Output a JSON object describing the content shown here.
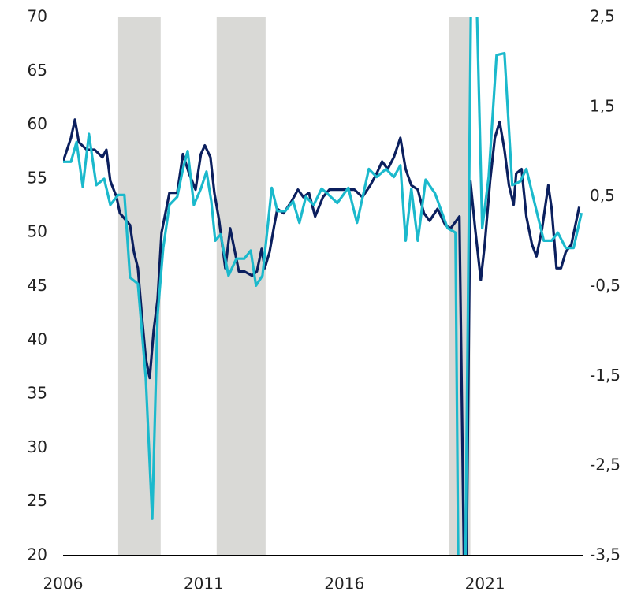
{
  "chart_data": {
    "type": "line",
    "xlim": [
      2006,
      2024.5
    ],
    "xticks": [
      2006,
      2011,
      2016,
      2021
    ],
    "ylim": [
      20,
      70
    ],
    "yticks": [
      20,
      25,
      30,
      35,
      40,
      45,
      50,
      55,
      60,
      65,
      70
    ],
    "y2lim": [
      -3.5,
      2.5
    ],
    "y2ticks": [
      {
        "value": 2.5,
        "label": "2,5"
      },
      {
        "value": 1.5,
        "label": "1,5"
      },
      {
        "value": 0.5,
        "label": "0,5"
      },
      {
        "value": -0.5,
        "label": "-0,5"
      },
      {
        "value": -1.5,
        "label": "-1,5"
      },
      {
        "value": -2.5,
        "label": "-2,5"
      },
      {
        "value": -3.5,
        "label": "-3,5"
      }
    ],
    "shaded_periods": [
      [
        2007.96,
        2009.47
      ],
      [
        2011.46,
        2013.2
      ],
      [
        2019.72,
        2020.48
      ]
    ],
    "shade_color": "#d9d9d6",
    "series": [
      {
        "color": "#0b1f5e",
        "x": [
          2006,
          2006.28,
          2006.42,
          2006.56,
          2006.84,
          2007.12,
          2007.4,
          2007.54,
          2007.68,
          2007.9,
          2008.02,
          2008.38,
          2008.52,
          2008.66,
          2008.8,
          2008.94,
          2009.08,
          2009.22,
          2009.36,
          2009.5,
          2009.78,
          2010.06,
          2010.26,
          2010.48,
          2010.71,
          2010.9,
          2011.04,
          2011.24,
          2011.38,
          2011.55,
          2011.77,
          2011.94,
          2012.11,
          2012.25,
          2012.44,
          2012.72,
          2012.89,
          2013.06,
          2013.17,
          2013.34,
          2013.51,
          2013.62,
          2013.84,
          2014.12,
          2014.35,
          2014.54,
          2014.74,
          2014.96,
          2015.24,
          2015.47,
          2015.75,
          2016.03,
          2016.36,
          2016.64,
          2016.92,
          2017.15,
          2017.34,
          2017.54,
          2017.76,
          2017.99,
          2018.18,
          2018.38,
          2018.61,
          2018.83,
          2019.03,
          2019.31,
          2019.59,
          2019.78,
          2020.09,
          2020.26,
          2020.34,
          2020.48,
          2020.65,
          2020.85,
          2020.99,
          2021.18,
          2021.35,
          2021.52,
          2021.69,
          2021.85,
          2022.02,
          2022.11,
          2022.3,
          2022.47,
          2022.67,
          2022.83,
          2023.03,
          2023.25,
          2023.37,
          2023.54,
          2023.7,
          2023.87,
          2024.07,
          2024.35
        ],
        "values": [
          56.6,
          58.8,
          60.5,
          58.4,
          57.7,
          57.7,
          57.0,
          57.7,
          54.8,
          53.3,
          51.8,
          50.7,
          48.2,
          46.7,
          42.3,
          38.3,
          36.5,
          40.9,
          43.8,
          50.0,
          53.7,
          53.7,
          57.3,
          55.5,
          54.0,
          57.3,
          58.1,
          57.0,
          53.7,
          51.1,
          46.7,
          50.4,
          48.2,
          46.4,
          46.4,
          46.0,
          46.4,
          48.5,
          46.7,
          48.2,
          50.7,
          52.2,
          51.8,
          52.9,
          54.0,
          53.3,
          53.7,
          51.5,
          53.3,
          54.0,
          54.0,
          54.0,
          54.0,
          53.3,
          54.4,
          55.5,
          56.6,
          55.9,
          57.0,
          58.8,
          55.9,
          54.4,
          54.0,
          51.8,
          51.1,
          52.2,
          50.7,
          50.4,
          51.5,
          18,
          18,
          54.8,
          50.4,
          45.6,
          48.9,
          54.8,
          58.8,
          60.3,
          57.7,
          54.4,
          52.6,
          55.5,
          55.9,
          51.5,
          48.9,
          47.8,
          50.4,
          54.4,
          52.2,
          46.7,
          46.7,
          48.2,
          48.9,
          52.4
        ]
      },
      {
        "color": "#1bb9cc",
        "axis": "y2",
        "x": [
          2006,
          2006.28,
          2006.48,
          2006.7,
          2006.92,
          2007.18,
          2007.46,
          2007.68,
          2007.96,
          2008.18,
          2008.38,
          2008.66,
          2008.94,
          2009.17,
          2009.36,
          2009.56,
          2009.78,
          2010.06,
          2010.26,
          2010.43,
          2010.65,
          2010.9,
          2011.1,
          2011.27,
          2011.41,
          2011.6,
          2011.88,
          2012.16,
          2012.44,
          2012.67,
          2012.86,
          2013.09,
          2013.42,
          2013.62,
          2013.9,
          2014.18,
          2014.4,
          2014.63,
          2014.91,
          2015.19,
          2015.38,
          2015.75,
          2016.14,
          2016.45,
          2016.87,
          2017.15,
          2017.48,
          2017.76,
          2017.99,
          2018.18,
          2018.38,
          2018.61,
          2018.89,
          2019.22,
          2019.67,
          2019.95,
          2020.06,
          2020.29,
          2020.51,
          2020.68,
          2020.9,
          2021.13,
          2021.41,
          2021.69,
          2021.97,
          2022.25,
          2022.47,
          2022.81,
          2023.09,
          2023.37,
          2023.59,
          2023.87,
          2024.15,
          2024.43
        ],
        "values": [
          0.89,
          0.89,
          1.11,
          0.61,
          1.2,
          0.63,
          0.7,
          0.41,
          0.52,
          0.52,
          -0.4,
          -0.47,
          -1.52,
          -3.09,
          -0.82,
          -0.07,
          0.41,
          0.5,
          0.81,
          1.01,
          0.41,
          0.59,
          0.78,
          0.45,
          0.01,
          0.08,
          -0.38,
          -0.19,
          -0.19,
          -0.1,
          -0.49,
          -0.38,
          0.6,
          0.34,
          0.34,
          0.45,
          0.21,
          0.5,
          0.41,
          0.59,
          0.54,
          0.43,
          0.6,
          0.21,
          0.81,
          0.72,
          0.81,
          0.72,
          0.85,
          0.01,
          0.59,
          0.01,
          0.69,
          0.54,
          0.15,
          0.1,
          -4,
          -4,
          3,
          3,
          0.15,
          0.72,
          2.08,
          2.1,
          0.63,
          0.67,
          0.81,
          0.37,
          0.01,
          0.01,
          0.1,
          -0.07,
          -0.07,
          0.32
        ]
      }
    ]
  }
}
